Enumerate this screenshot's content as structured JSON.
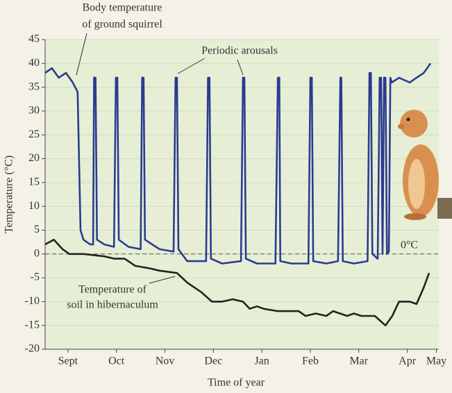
{
  "chart_data": {
    "type": "line",
    "ylabel": "Temperature (°C)",
    "xlabel": "Time of year",
    "xlim": [
      -0.47,
      7.65
    ],
    "ylim": [
      -20,
      45
    ],
    "yticks": [
      -20,
      -15,
      -10,
      -5,
      0,
      5,
      10,
      15,
      20,
      25,
      30,
      35,
      40,
      45
    ],
    "xticks": [
      {
        "value": 0,
        "label": "Sept"
      },
      {
        "value": 1,
        "label": "Oct"
      },
      {
        "value": 2,
        "label": "Nov"
      },
      {
        "value": 3,
        "label": "Dec"
      },
      {
        "value": 4,
        "label": "Jan"
      },
      {
        "value": 5,
        "label": "Feb"
      },
      {
        "value": 6,
        "label": "Mar"
      },
      {
        "value": 7,
        "label": "Apr"
      },
      {
        "value": 7.6,
        "label": "May"
      }
    ],
    "grid": true,
    "reference_line": {
      "value": 0,
      "label": "0°C"
    },
    "annotations": [
      {
        "lines": [
          "Body temperature",
          "of ground squirrel"
        ]
      },
      {
        "lines": [
          "Periodic arousals"
        ]
      },
      {
        "lines": [
          "Temperature of",
          "soil in hibernaculum"
        ]
      }
    ],
    "series": [
      {
        "color": "#2b3b8f",
        "x": [
          -0.47,
          -0.33,
          -0.19,
          -0.04,
          0.1,
          0.2,
          0.26,
          0.32,
          0.46,
          0.52,
          0.54,
          0.57,
          0.6,
          0.75,
          0.95,
          0.99,
          1.02,
          1.05,
          1.25,
          1.5,
          1.53,
          1.56,
          1.59,
          1.89,
          2.18,
          2.22,
          2.25,
          2.28,
          2.46,
          2.85,
          2.89,
          2.92,
          2.95,
          3.18,
          3.57,
          3.61,
          3.64,
          3.67,
          3.9,
          4.28,
          4.33,
          4.36,
          4.38,
          4.61,
          4.96,
          5.0,
          5.03,
          5.06,
          5.33,
          5.57,
          5.62,
          5.64,
          5.67,
          5.9,
          6.18,
          6.22,
          6.25,
          6.28,
          6.39,
          6.43,
          6.46,
          6.49,
          6.52,
          6.55,
          6.58,
          6.62,
          6.65,
          6.68,
          6.83,
          7.05,
          7.19,
          7.34,
          7.48
        ],
        "values": [
          38,
          39,
          37,
          38,
          36,
          34,
          5,
          3,
          2,
          2,
          37,
          37,
          3,
          2,
          1.5,
          37,
          37,
          3,
          1.5,
          1,
          37,
          37,
          3,
          1,
          0.5,
          37,
          37,
          1,
          -1.5,
          -1.5,
          37,
          37,
          -1,
          -2,
          -1.5,
          37,
          37,
          -1,
          -2,
          -2,
          37,
          37,
          -1.5,
          -2,
          -2,
          37,
          37,
          -1.5,
          -2,
          -1.5,
          37,
          37,
          -1.5,
          -2,
          -1.5,
          38,
          38,
          0,
          -1,
          37,
          37,
          0,
          37,
          37,
          0,
          0.5,
          37,
          36,
          37,
          36,
          37,
          38,
          40
        ]
      },
      {
        "color": "#222222",
        "x": [
          -0.47,
          -0.29,
          -0.11,
          0.03,
          0.32,
          0.75,
          0.96,
          1.17,
          1.39,
          1.68,
          1.89,
          2.25,
          2.46,
          2.75,
          2.97,
          3.18,
          3.4,
          3.61,
          3.75,
          3.9,
          4.04,
          4.33,
          4.76,
          4.9,
          5.11,
          5.33,
          5.47,
          5.76,
          5.9,
          6.05,
          6.33,
          6.55,
          6.69,
          6.83,
          7.05,
          7.19,
          7.34,
          7.45
        ],
        "values": [
          2,
          3,
          1,
          0,
          0,
          -0.5,
          -1,
          -1,
          -2.5,
          -3,
          -3.5,
          -4,
          -6,
          -8,
          -10,
          -10,
          -9.5,
          -10,
          -11.5,
          -11,
          -11.5,
          -12,
          -12,
          -13,
          -12.5,
          -13,
          -12,
          -13,
          -12.5,
          -13,
          -13,
          -15,
          -13,
          -10,
          -10,
          -10.5,
          -7,
          -4
        ]
      }
    ]
  }
}
